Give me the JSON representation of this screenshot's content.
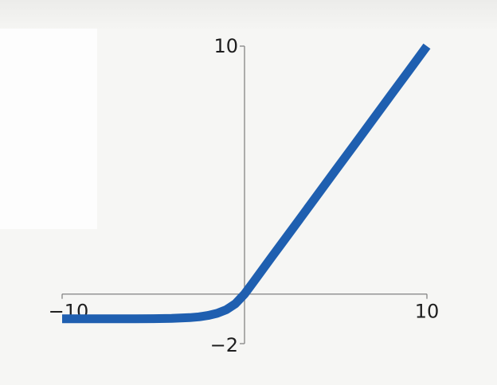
{
  "chart_data": {
    "type": "line",
    "title": "",
    "xlabel": "",
    "ylabel": "",
    "xlim": [
      -10,
      10
    ],
    "ylim": [
      -2,
      10
    ],
    "x_ticks": [
      {
        "value": -10,
        "label": "−10"
      },
      {
        "value": 10,
        "label": "10"
      }
    ],
    "y_ticks": [
      {
        "value": 10,
        "label": "10"
      },
      {
        "value": -2,
        "label": "−2"
      }
    ],
    "grid": false,
    "legend": "none",
    "series": [
      {
        "color": "#1f5fb0",
        "x": [
          -10,
          -8,
          -6,
          -5,
          -4,
          -3,
          -2.5,
          -2,
          -1.5,
          -1,
          -0.5,
          0,
          0.5,
          1,
          1.5,
          2,
          3,
          4,
          5,
          6,
          7,
          8,
          9,
          10
        ],
        "y": [
          -1.0,
          -1.0,
          -0.998,
          -0.993,
          -0.982,
          -0.95,
          -0.918,
          -0.865,
          -0.777,
          -0.632,
          -0.393,
          0,
          0.5,
          1,
          1.5,
          2,
          3,
          4,
          5,
          6,
          7,
          8,
          9,
          10
        ]
      }
    ]
  }
}
